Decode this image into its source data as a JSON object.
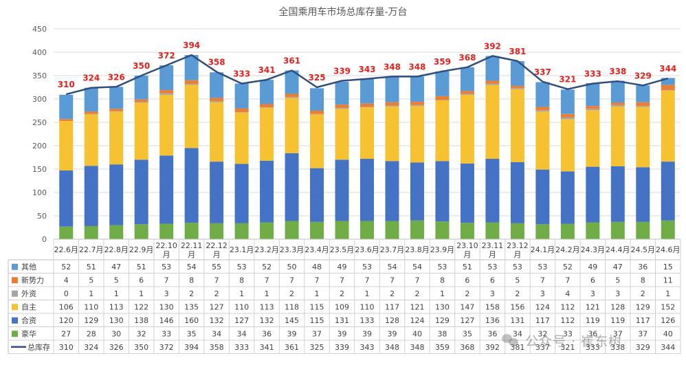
{
  "chart_data": {
    "type": "bar",
    "stacked": true,
    "title": "全国乘用车市场总库存量-万台",
    "ylim": [
      0,
      450
    ],
    "yticks": [
      0,
      50,
      100,
      150,
      200,
      250,
      300,
      350,
      400,
      450
    ],
    "grid": true,
    "categories": [
      "22.6月",
      "22.7月",
      "22.8月",
      "22.9月",
      "22.10月",
      "22.11月",
      "22.12月",
      "23.1月",
      "23.2月",
      "23.3月",
      "23.4月",
      "23.5月",
      "23.6月",
      "23.7月",
      "23.8月",
      "23.9月",
      "23.10月",
      "23.11月",
      "23.12月",
      "24.1月",
      "24.2月",
      "24.3月",
      "24.4月",
      "24.5月",
      "24.6月"
    ],
    "series": [
      {
        "name": "豪华",
        "color": "#70ad47",
        "values": [
          27,
          28,
          30,
          32,
          33,
          35,
          34,
          34,
          36,
          39,
          37,
          39,
          39,
          39,
          40,
          38,
          35,
          36,
          34,
          32,
          33,
          36,
          37,
          37,
          40
        ]
      },
      {
        "name": "合资",
        "color": "#4472c4",
        "values": [
          120,
          129,
          130,
          138,
          146,
          160,
          132,
          127,
          132,
          145,
          115,
          131,
          133,
          128,
          124,
          129,
          127,
          136,
          131,
          117,
          112,
          119,
          119,
          117,
          126
        ]
      },
      {
        "name": "自主",
        "color": "#f6c232",
        "values": [
          106,
          110,
          113,
          122,
          130,
          135,
          127,
          110,
          113,
          118,
          115,
          109,
          110,
          117,
          121,
          130,
          147,
          158,
          156,
          124,
          112,
          121,
          128,
          129,
          152
        ]
      },
      {
        "name": "外资",
        "color": "#a5a5a5",
        "values": [
          0,
          1,
          1,
          1,
          3,
          2,
          2,
          1,
          1,
          2,
          1,
          2,
          1,
          2,
          2,
          1,
          2,
          3,
          2,
          3,
          4,
          3,
          3,
          2,
          1
        ]
      },
      {
        "name": "新势力",
        "color": "#ed7d31",
        "values": [
          4,
          5,
          5,
          6,
          7,
          8,
          7,
          8,
          7,
          7,
          7,
          7,
          7,
          7,
          7,
          8,
          6,
          6,
          5,
          7,
          7,
          6,
          5,
          8,
          11
        ]
      },
      {
        "name": "其他",
        "color": "#5b9bd5",
        "values": [
          52,
          51,
          47,
          51,
          53,
          54,
          55,
          53,
          52,
          50,
          48,
          49,
          53,
          54,
          54,
          53,
          51,
          53,
          53,
          53,
          52,
          49,
          47,
          36,
          15
        ]
      }
    ],
    "line": {
      "name": "总库存",
      "color": "#2f4d7e",
      "label_color": "#e3211c",
      "values": [
        310,
        324,
        326,
        350,
        372,
        394,
        358,
        333,
        341,
        361,
        325,
        339,
        343,
        348,
        348,
        359,
        368,
        392,
        381,
        337,
        321,
        333,
        338,
        329,
        344
      ]
    },
    "table_row_order": [
      "其他",
      "新势力",
      "外资",
      "自主",
      "合资",
      "豪华",
      "总库存"
    ]
  },
  "watermark": {
    "text": "公众号 · 崔东树"
  }
}
